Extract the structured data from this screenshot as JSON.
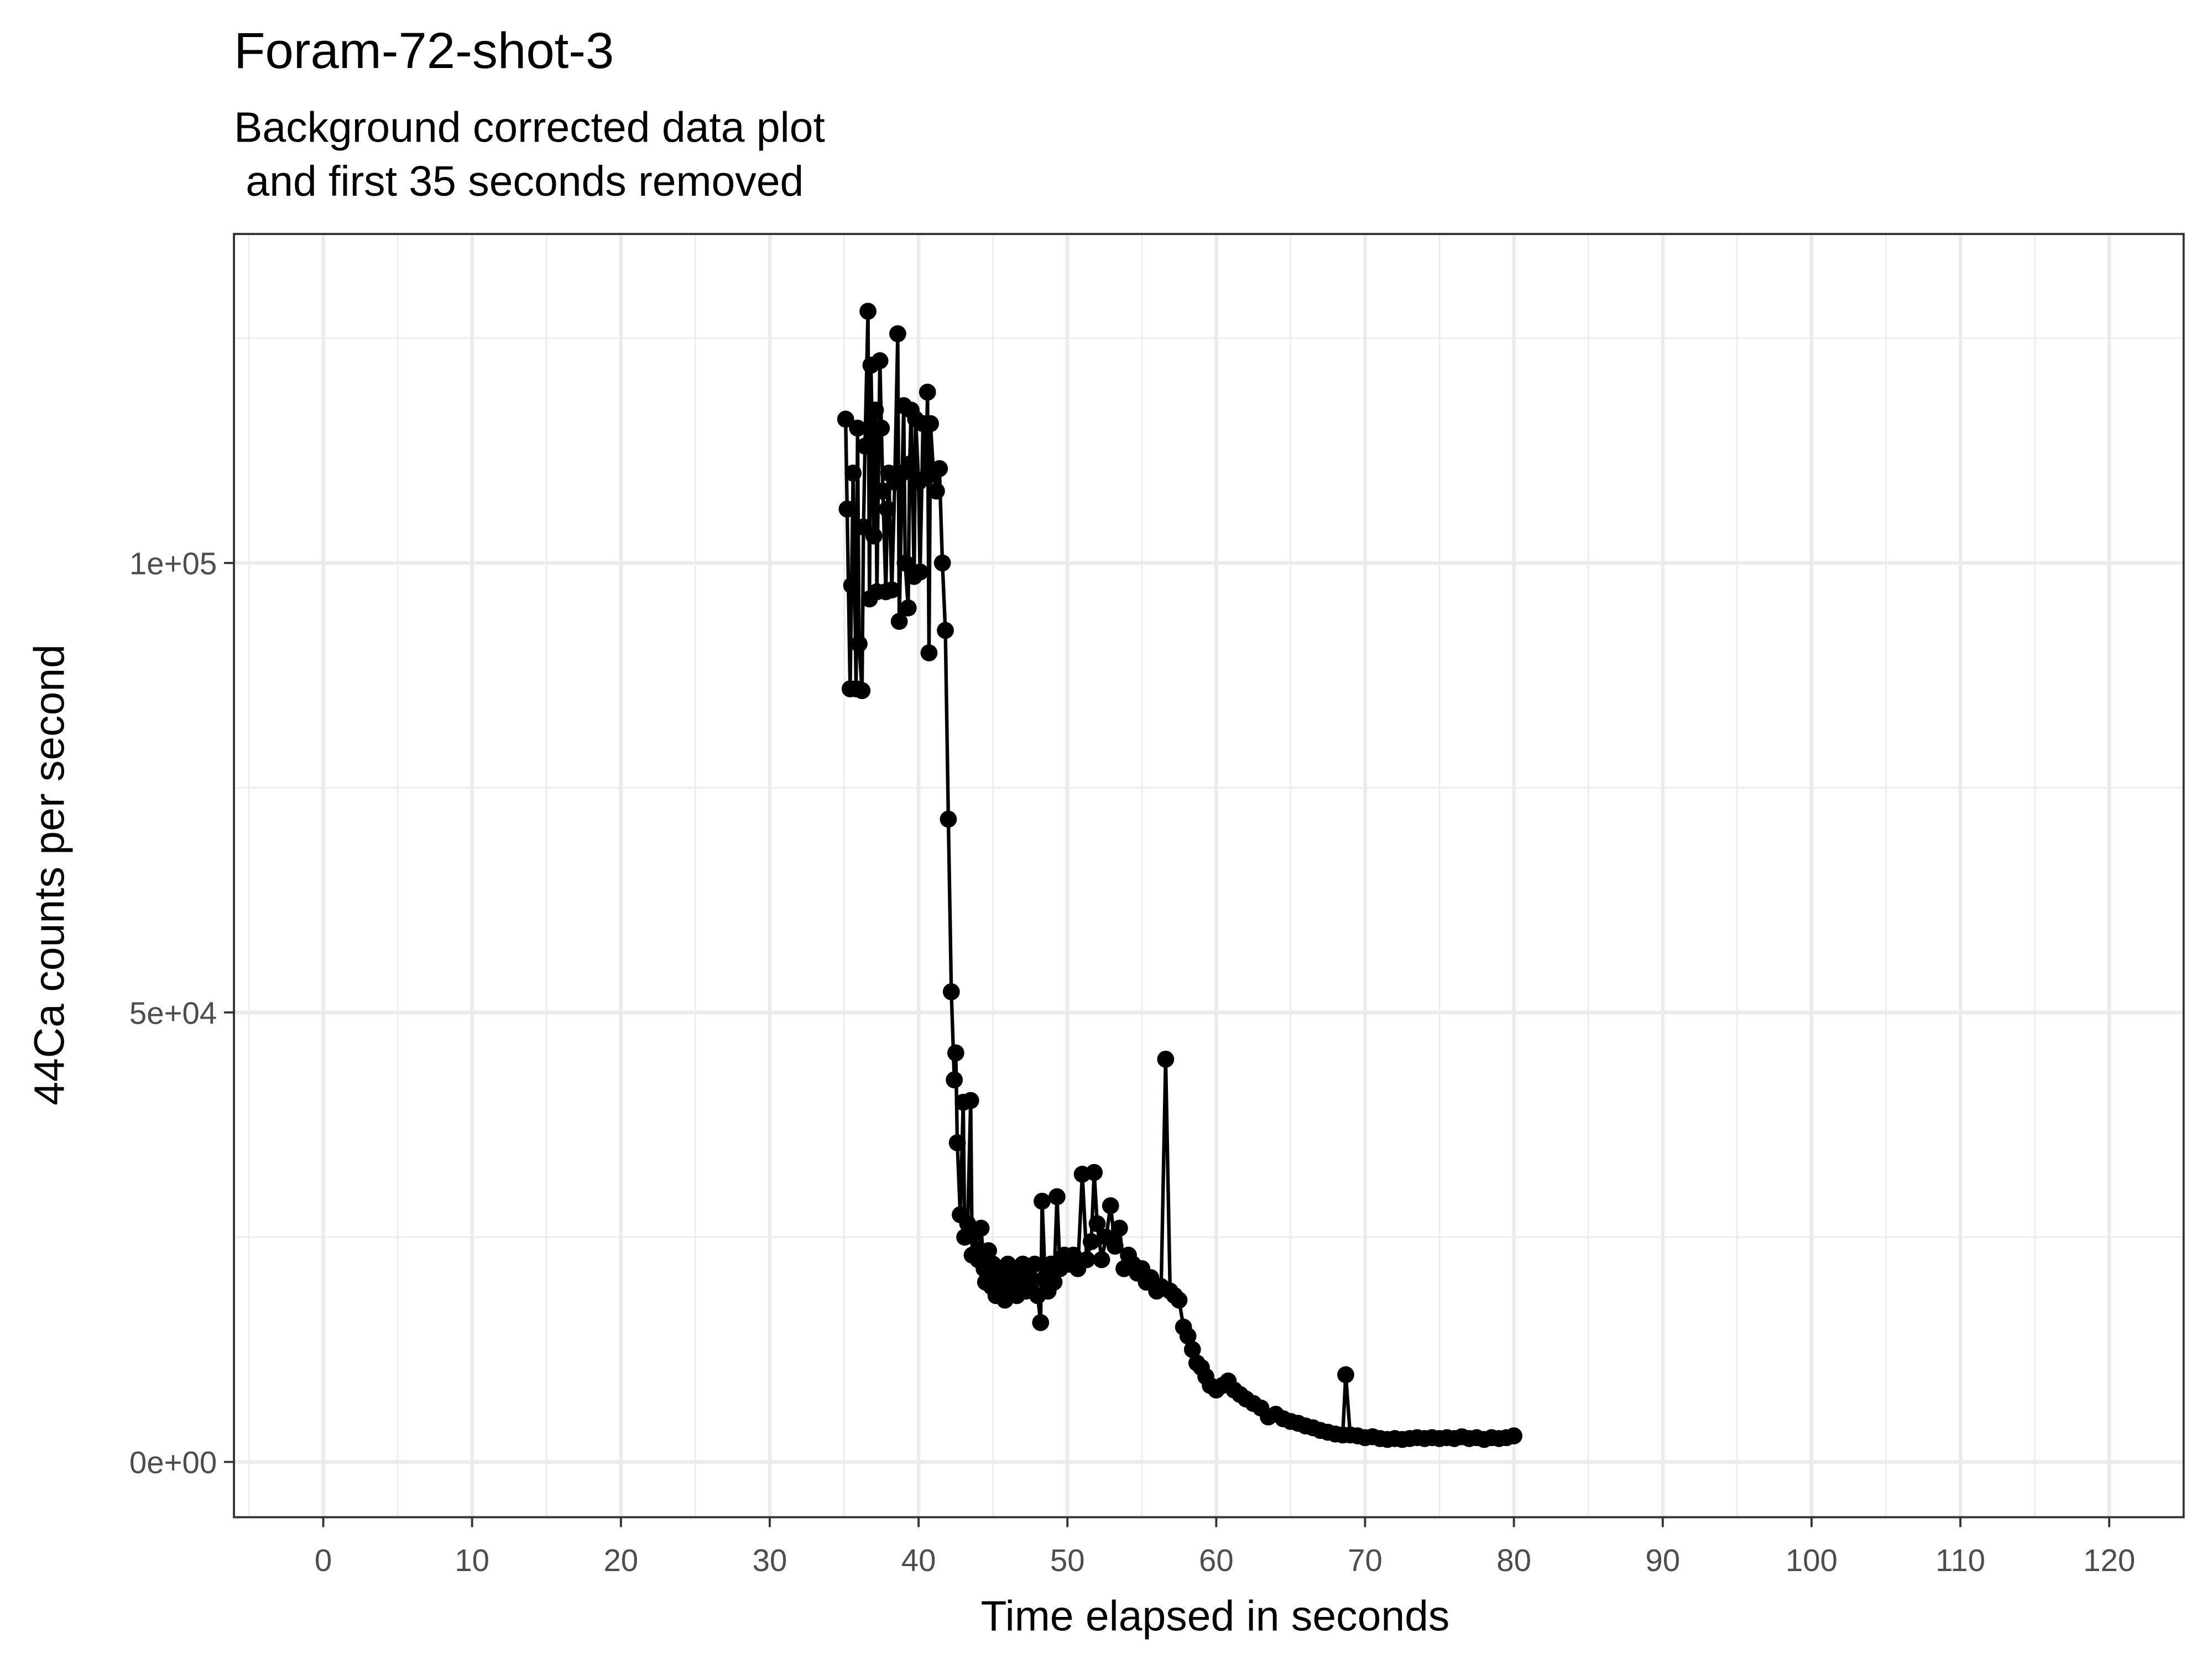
{
  "chart_data": {
    "type": "line",
    "markers": true,
    "title": "Foram-72-shot-3",
    "subtitle": [
      "Background corrected data plot",
      " and first 35 seconds removed"
    ],
    "x_label": "Time elapsed in seconds",
    "y_label": "44Ca counts per second",
    "color": "#000000",
    "grid": true,
    "xlim": [
      -6,
      125
    ],
    "ylim": [
      -6150,
      136600
    ],
    "xticks": [
      0,
      10,
      20,
      30,
      40,
      50,
      60,
      70,
      80,
      90,
      100,
      110,
      120
    ],
    "x_minor_ticks": [
      -5,
      5,
      15,
      25,
      35,
      45,
      55,
      65,
      75,
      85,
      95,
      105,
      115,
      125
    ],
    "yticks": [
      {
        "value": 0,
        "label": "0e+00"
      },
      {
        "value": 50000,
        "label": "5e+04"
      },
      {
        "value": 100000,
        "label": "1e+05"
      }
    ],
    "y_minor_ticks": [
      25000,
      75000,
      125000
    ],
    "x": [
      35.1,
      35.2,
      35.4,
      35.5,
      35.6,
      35.8,
      35.9,
      36.0,
      36.2,
      36.3,
      36.4,
      36.6,
      36.7,
      36.8,
      37.0,
      37.1,
      37.2,
      37.4,
      37.5,
      37.6,
      37.8,
      37.9,
      38.0,
      38.2,
      38.4,
      38.6,
      38.7,
      38.9,
      39.0,
      39.1,
      39.3,
      39.4,
      39.5,
      39.7,
      39.8,
      40.0,
      40.1,
      40.3,
      40.5,
      40.6,
      40.7,
      40.8,
      41.0,
      41.2,
      41.4,
      41.6,
      41.8,
      42.0,
      42.2,
      42.4,
      42.5,
      42.6,
      42.8,
      43.0,
      43.1,
      43.3,
      43.5,
      43.6,
      43.8,
      44.0,
      44.2,
      44.4,
      44.5,
      44.7,
      44.9,
      45.0,
      45.2,
      45.4,
      45.6,
      45.8,
      46.0,
      46.2,
      46.4,
      46.6,
      46.8,
      47.0,
      47.2,
      47.4,
      47.6,
      47.8,
      48.0,
      48.2,
      48.3,
      48.5,
      48.7,
      48.9,
      49.1,
      49.3,
      49.5,
      49.8,
      50.1,
      50.4,
      50.7,
      51.0,
      51.3,
      51.6,
      51.8,
      52.0,
      52.3,
      52.6,
      52.9,
      53.2,
      53.5,
      53.8,
      54.1,
      54.4,
      54.7,
      55.0,
      55.3,
      55.6,
      56.0,
      56.3,
      56.6,
      56.9,
      57.2,
      57.5,
      57.8,
      58.1,
      58.4,
      58.7,
      59.0,
      59.3,
      59.6,
      60.0,
      60.4,
      60.8,
      61.2,
      61.6,
      62.0,
      62.5,
      63.0,
      63.5,
      64.0,
      64.5,
      65.0,
      65.5,
      66.0,
      66.5,
      67.0,
      67.5,
      68.0,
      68.5,
      68.7,
      69.0,
      69.5,
      70.0,
      70.5,
      71.0,
      71.5,
      72.0,
      72.5,
      73.0,
      73.5,
      74.0,
      74.5,
      75.0,
      75.5,
      76.0,
      76.5,
      77.0,
      77.5,
      78.0,
      78.5,
      79.0,
      79.5,
      80.0
    ],
    "values": [
      116000,
      106000,
      86000,
      97500,
      110000,
      86000,
      115000,
      91000,
      85800,
      104000,
      113000,
      128000,
      96000,
      122000,
      103000,
      117000,
      96800,
      122500,
      115000,
      108000,
      96800,
      106000,
      110000,
      97000,
      109000,
      125500,
      93500,
      110000,
      117500,
      100000,
      95000,
      111000,
      117000,
      98500,
      116000,
      109000,
      99000,
      115500,
      109500,
      119000,
      90000,
      115500,
      110000,
      108000,
      110500,
      100000,
      92500,
      71500,
      52300,
      42500,
      45500,
      35500,
      27500,
      40000,
      25000,
      26500,
      40200,
      23000,
      25500,
      22500,
      26000,
      21500,
      20000,
      23500,
      19500,
      22000,
      18500,
      21000,
      19500,
      18000,
      22000,
      19500,
      21500,
      18500,
      20000,
      22000,
      19000,
      21500,
      20000,
      22000,
      18500,
      15500,
      29000,
      20500,
      19000,
      22000,
      20000,
      29500,
      21500,
      23000,
      22000,
      23000,
      21500,
      32000,
      22500,
      24500,
      32200,
      26500,
      22500,
      25000,
      28500,
      24000,
      26000,
      21500,
      23000,
      22000,
      21000,
      21500,
      20000,
      20500,
      19000,
      19500,
      44800,
      19000,
      18500,
      18000,
      15000,
      14000,
      12500,
      11000,
      10500,
      9500,
      8500,
      8000,
      8500,
      9000,
      8000,
      7500,
      7000,
      6500,
      6000,
      5000,
      5300,
      4800,
      4500,
      4300,
      4000,
      3800,
      3500,
      3300,
      3100,
      3000,
      9700,
      3000,
      2900,
      2700,
      2800,
      2600,
      2500,
      2600,
      2500,
      2600,
      2700,
      2600,
      2700,
      2600,
      2700,
      2600,
      2800,
      2600,
      2700,
      2500,
      2700,
      2600,
      2700,
      2900
    ]
  }
}
